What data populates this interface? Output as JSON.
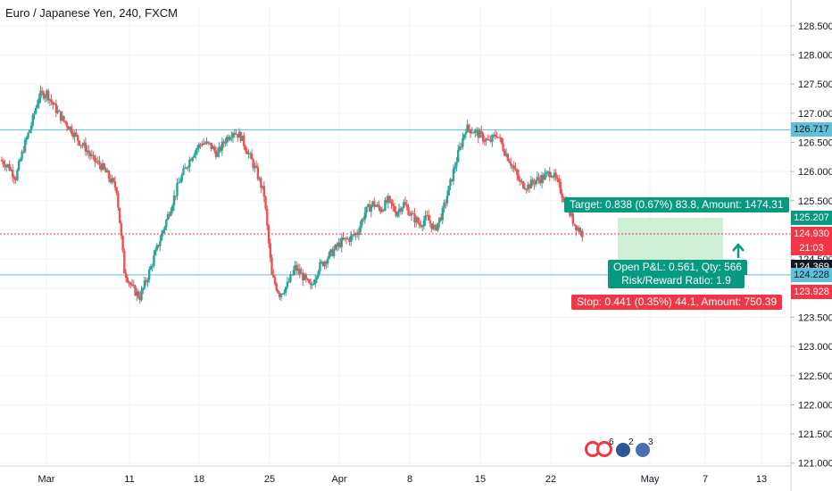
{
  "header": {
    "title": "Euro / Japanese Yen, 240, FXCM"
  },
  "chart_data": {
    "type": "candlestick",
    "symbol": "Euro / Japanese Yen",
    "interval": "240",
    "source": "FXCM",
    "ylim": [
      120.95,
      128.85
    ],
    "y_ticks": [
      "121.000",
      "121.500",
      "122.000",
      "122.500",
      "123.000",
      "123.500",
      "124.000",
      "124.500",
      "125.000",
      "125.500",
      "126.000",
      "126.500",
      "127.000",
      "127.500",
      "128.000",
      "128.500"
    ],
    "x_ticks": [
      "Mar",
      "11",
      "18",
      "25",
      "Apr",
      "8",
      "15",
      "22",
      "May",
      "7",
      "13"
    ],
    "series": [
      {
        "name": "EURJPY",
        "closes": [
          126.2,
          126.1,
          125.9,
          126.4,
          126.8,
          127.3,
          127.35,
          127.1,
          126.9,
          126.75,
          126.55,
          126.4,
          126.2,
          126.1,
          125.9,
          125.7,
          124.3,
          124.0,
          123.85,
          124.2,
          124.6,
          125.0,
          125.4,
          125.8,
          126.1,
          126.35,
          126.5,
          126.45,
          126.3,
          126.55,
          126.7,
          126.6,
          126.3,
          126.0,
          125.6,
          124.2,
          123.9,
          124.05,
          124.35,
          124.2,
          124.0,
          124.35,
          124.5,
          124.65,
          124.8,
          124.85,
          124.95,
          125.3,
          125.45,
          125.35,
          125.5,
          125.3,
          125.45,
          125.25,
          125.1,
          125.2,
          125.0,
          125.3,
          125.8,
          126.3,
          126.75,
          126.7,
          126.6,
          126.5,
          126.65,
          126.35,
          126.1,
          125.8,
          125.75,
          125.85,
          125.9,
          126.0,
          125.75,
          125.4,
          125.1,
          124.93
        ]
      }
    ],
    "horizontal_lines": [
      126.717,
      124.228
    ],
    "current_price": 124.93,
    "position": {
      "type": "long",
      "target": 125.207,
      "entry": 124.369,
      "stop": 123.928,
      "target_label": "Target: 0.838 (0.67%) 83.8, Amount: 1474.31",
      "pnl_label": "Open P&L: 0.561, Qty: 566",
      "rr_label": "Risk/Reward Ratio: 1.9",
      "stop_label": "Stop: 0.441 (0.35%) 44.1, Amount: 750.39"
    },
    "countdown": "21:03",
    "price_tags": [
      "126.717",
      "125.207",
      "124.930",
      "124.369",
      "124.228",
      "123.928"
    ],
    "events": [
      "6",
      "2",
      "3"
    ]
  },
  "colors": {
    "up": "#26a69a",
    "down": "#ef5350",
    "hline": "#5fc0d6",
    "target": "#089981",
    "stop": "#f23645",
    "position_fill": "#bfe9c8"
  }
}
